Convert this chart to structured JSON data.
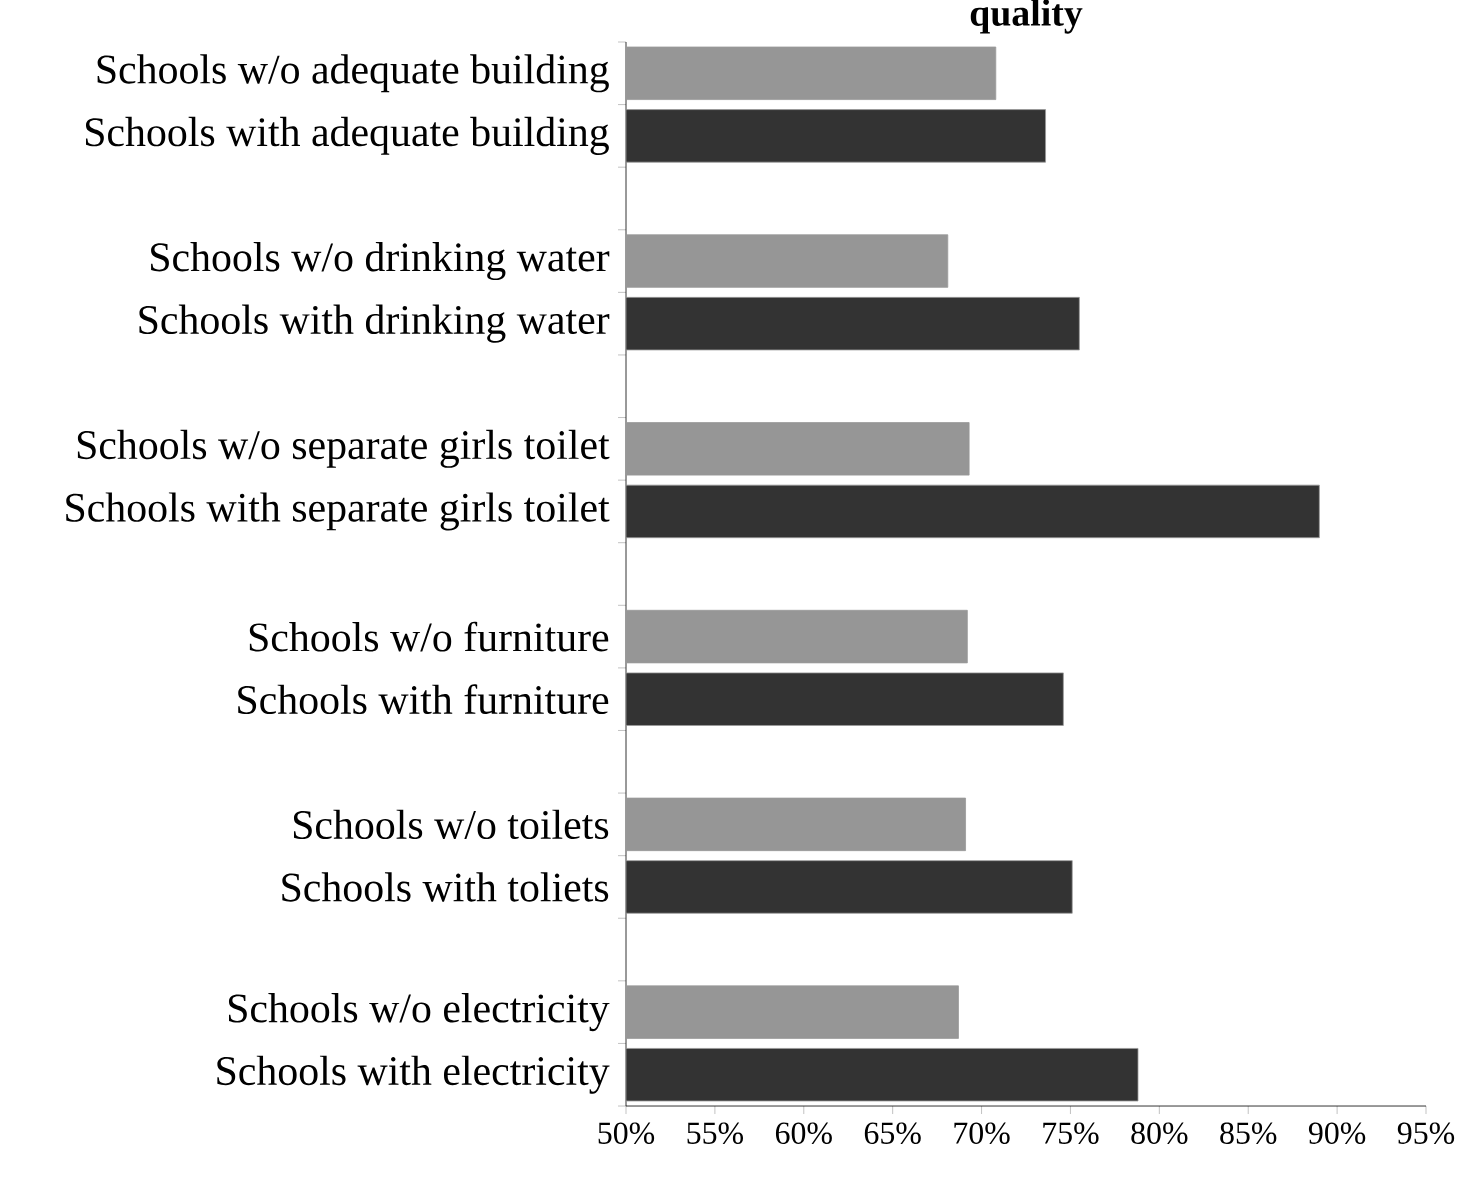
{
  "chart_data": {
    "type": "bar",
    "orientation": "horizontal",
    "title": "quality",
    "categories": [
      "Schools w/o adequate building",
      "Schools with adequate building",
      null,
      "Schools w/o drinking water",
      "Schools with drinking water",
      null,
      "Schools w/o separate girls toilet",
      "Schools with separate girls toilet",
      null,
      "Schools w/o furniture",
      "Schools with furniture",
      null,
      "Schools w/o toilets",
      "Schools with toliets",
      null,
      "Schools w/o electricity",
      "Schools with electricity"
    ],
    "values": [
      70.8,
      73.6,
      null,
      68.1,
      75.5,
      null,
      69.3,
      89.0,
      null,
      69.2,
      74.6,
      null,
      69.1,
      75.1,
      null,
      68.7,
      78.8
    ],
    "colors": [
      "#969696",
      "#333333",
      null,
      "#969696",
      "#333333",
      null,
      "#969696",
      "#333333",
      null,
      "#969696",
      "#333333",
      null,
      "#969696",
      "#333333",
      null,
      "#969696",
      "#333333"
    ],
    "xlim": [
      50,
      95
    ],
    "xticks": [
      {
        "value": 50,
        "label": "50%"
      },
      {
        "value": 55,
        "label": "55%"
      },
      {
        "value": 60,
        "label": "60%"
      },
      {
        "value": 65,
        "label": "65%"
      },
      {
        "value": 70,
        "label": "70%"
      },
      {
        "value": 75,
        "label": "75%"
      },
      {
        "value": 80,
        "label": "80%"
      },
      {
        "value": 85,
        "label": "85%"
      },
      {
        "value": 90,
        "label": "90%"
      },
      {
        "value": 95,
        "label": "95%"
      }
    ],
    "grid": false
  }
}
